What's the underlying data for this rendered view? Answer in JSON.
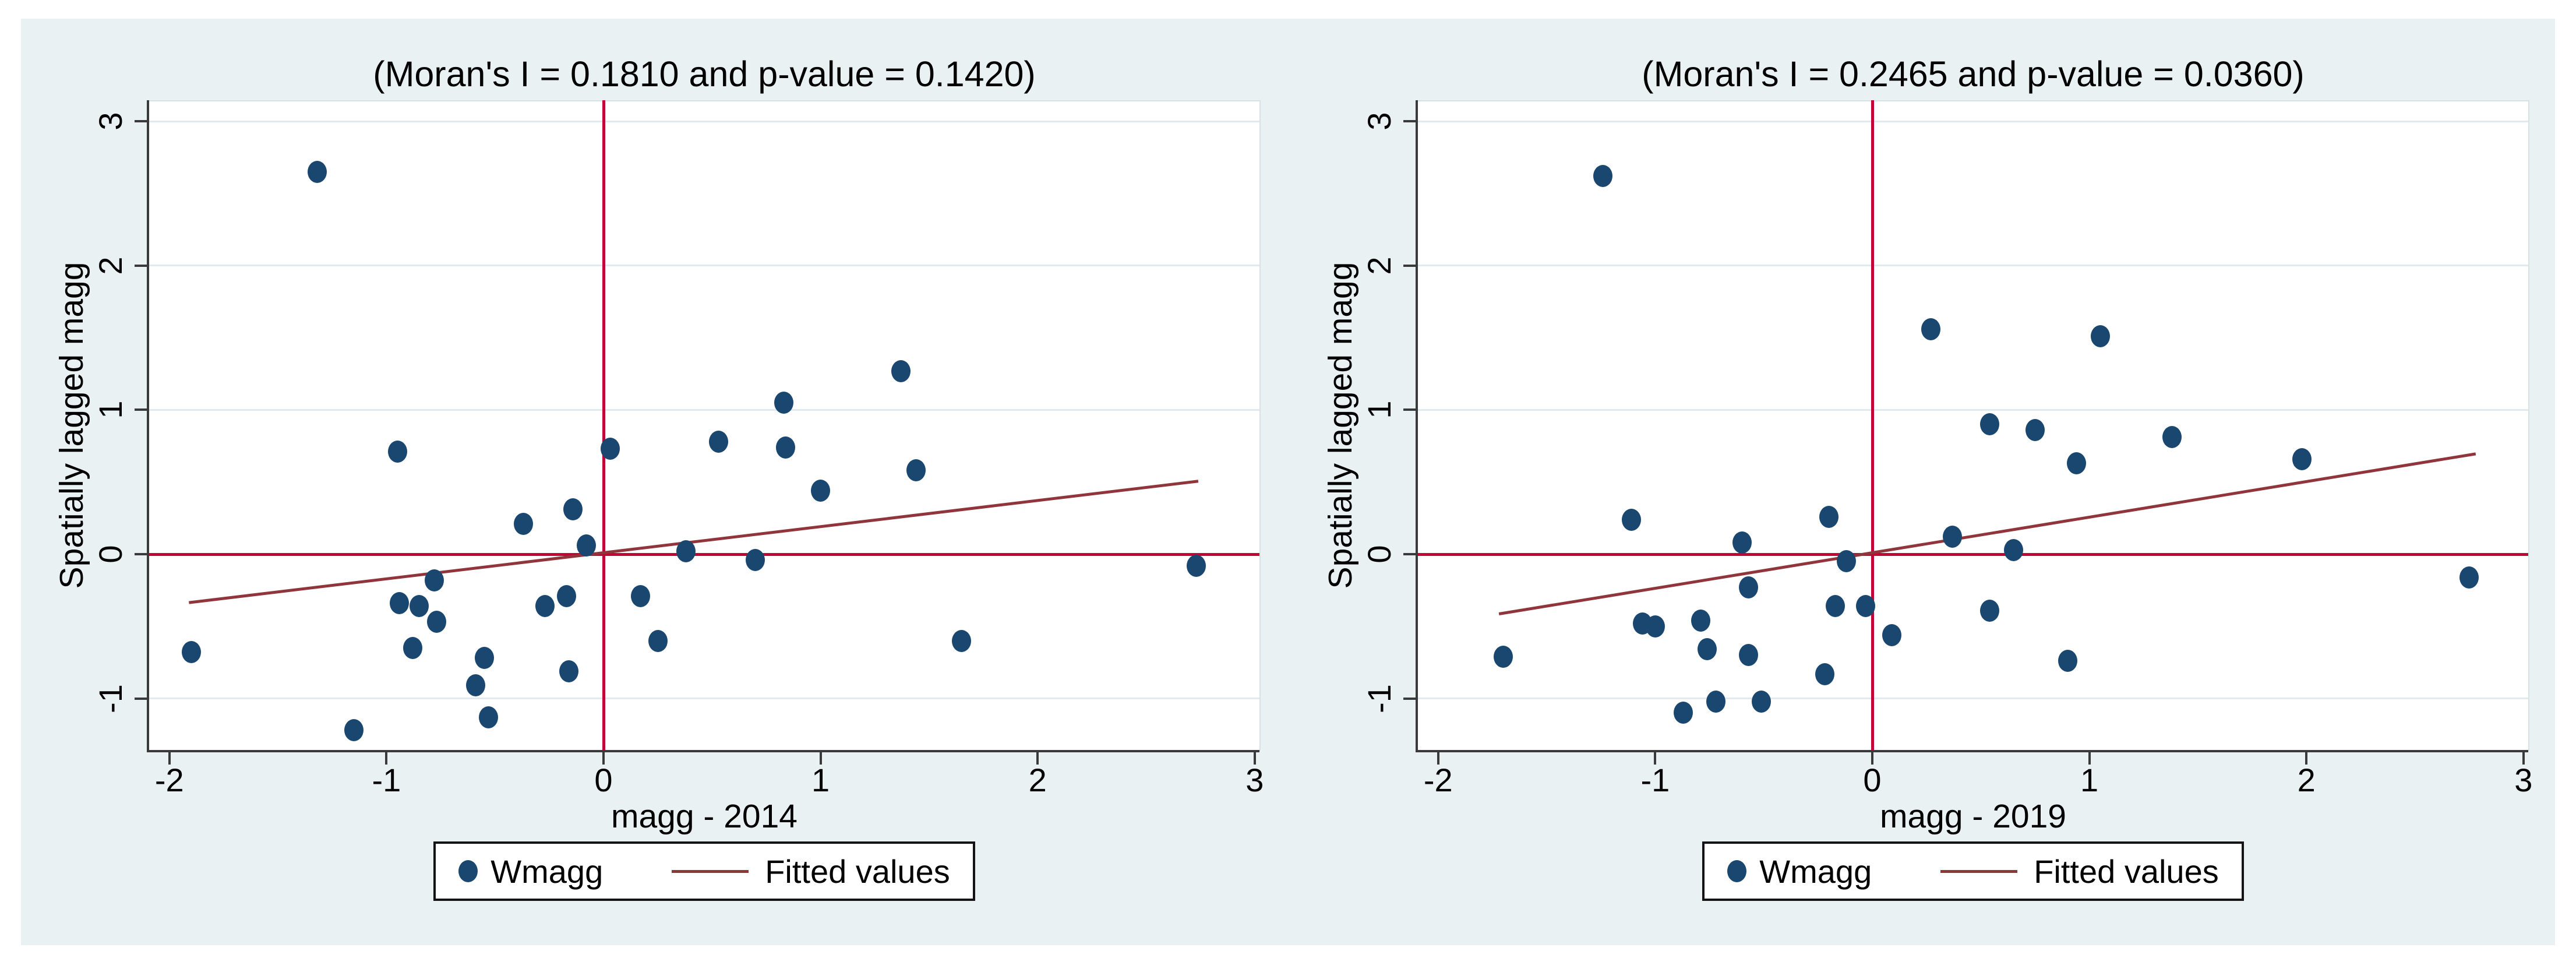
{
  "palette": {
    "canvas": "#eaf1f3",
    "plot_background": "#ffffff",
    "gridline": "#dfebee",
    "axis_line": "#3a3a3a",
    "marker": "#1a476f",
    "reference_line": "#c10534",
    "fitted_line": "#90353b",
    "text": "#000000",
    "legend_border": "#141414"
  },
  "y_axis_label": "Spatially lagged magg",
  "chart_data": [
    {
      "type": "scatter",
      "title": "(Moran's I = 0.1810 and p-value = 0.1420)",
      "moran_i": 0.181,
      "p_value": 0.142,
      "xlabel": "magg - 2014",
      "ylabel": "Spatially lagged magg",
      "xlim": [
        -2.09,
        3.02
      ],
      "ylim": [
        -1.36,
        3.15
      ],
      "xticks": [
        -2,
        -1,
        0,
        1,
        2,
        3
      ],
      "yticks": [
        3,
        2,
        1,
        0,
        -1
      ],
      "xtick_labels": [
        "-2",
        "-1",
        "0",
        "1",
        "2",
        "3"
      ],
      "ytick_labels": [
        "3",
        "2",
        "1",
        "0",
        "-1"
      ],
      "grid": "horizontal-only",
      "ref_lines": {
        "x": 0,
        "y": 0
      },
      "fit_line": {
        "slope": 0.181,
        "intercept": 0.01,
        "x_start": -1.91,
        "x_end": 2.74
      },
      "legend": [
        "Wmagg",
        "Fitted values"
      ],
      "legend_position": "bottom-center",
      "series": [
        {
          "name": "Wmagg",
          "points": [
            [
              -1.9,
              -0.68
            ],
            [
              -1.32,
              2.65
            ],
            [
              -1.15,
              -1.22
            ],
            [
              -0.95,
              0.71
            ],
            [
              -0.94,
              -0.34
            ],
            [
              -0.88,
              -0.65
            ],
            [
              -0.85,
              -0.36
            ],
            [
              -0.78,
              -0.18
            ],
            [
              -0.77,
              -0.47
            ],
            [
              -0.59,
              -0.91
            ],
            [
              -0.55,
              -0.72
            ],
            [
              -0.53,
              -1.13
            ],
            [
              -0.37,
              0.21
            ],
            [
              -0.27,
              -0.36
            ],
            [
              -0.17,
              -0.29
            ],
            [
              -0.16,
              -0.81
            ],
            [
              -0.14,
              0.31
            ],
            [
              -0.08,
              0.06
            ],
            [
              0.03,
              0.73
            ],
            [
              0.17,
              -0.29
            ],
            [
              0.25,
              -0.6
            ],
            [
              0.38,
              0.02
            ],
            [
              0.53,
              0.78
            ],
            [
              0.7,
              -0.04
            ],
            [
              0.83,
              1.05
            ],
            [
              0.84,
              0.74
            ],
            [
              1.0,
              0.44
            ],
            [
              1.37,
              1.27
            ],
            [
              1.44,
              0.58
            ],
            [
              1.65,
              -0.6
            ],
            [
              2.73,
              -0.08
            ]
          ]
        }
      ]
    },
    {
      "type": "scatter",
      "title": "(Moran's I = 0.2465 and p-value = 0.0360)",
      "moran_i": 0.2465,
      "p_value": 0.036,
      "xlabel": "magg - 2019",
      "ylabel": "Spatially lagged magg",
      "xlim": [
        -2.09,
        3.02
      ],
      "ylim": [
        -1.36,
        3.15
      ],
      "xticks": [
        -2,
        -1,
        0,
        1,
        2,
        3
      ],
      "yticks": [
        3,
        2,
        1,
        0,
        -1
      ],
      "xtick_labels": [
        "-2",
        "-1",
        "0",
        "1",
        "2",
        "3"
      ],
      "ytick_labels": [
        "3",
        "2",
        "1",
        "0",
        "-1"
      ],
      "grid": "horizontal-only",
      "ref_lines": {
        "x": 0,
        "y": 0
      },
      "fit_line": {
        "slope": 0.2465,
        "intercept": 0.01,
        "x_start": -1.72,
        "x_end": 2.78
      },
      "legend": [
        "Wmagg",
        "Fitted values"
      ],
      "legend_position": "bottom-center",
      "series": [
        {
          "name": "Wmagg",
          "points": [
            [
              -1.7,
              -0.71
            ],
            [
              -1.24,
              2.62
            ],
            [
              -1.11,
              0.24
            ],
            [
              -1.06,
              -0.48
            ],
            [
              -1.0,
              -0.5
            ],
            [
              -0.87,
              -1.1
            ],
            [
              -0.79,
              -0.46
            ],
            [
              -0.76,
              -0.66
            ],
            [
              -0.72,
              -1.02
            ],
            [
              -0.6,
              0.08
            ],
            [
              -0.57,
              -0.23
            ],
            [
              -0.57,
              -0.7
            ],
            [
              -0.51,
              -1.02
            ],
            [
              -0.22,
              -0.83
            ],
            [
              -0.2,
              0.26
            ],
            [
              -0.17,
              -0.36
            ],
            [
              -0.12,
              -0.05
            ],
            [
              -0.03,
              -0.36
            ],
            [
              0.09,
              -0.56
            ],
            [
              0.27,
              1.56
            ],
            [
              0.37,
              0.12
            ],
            [
              0.54,
              0.9
            ],
            [
              0.54,
              -0.39
            ],
            [
              0.65,
              0.03
            ],
            [
              0.75,
              0.86
            ],
            [
              0.9,
              -0.74
            ],
            [
              0.94,
              0.63
            ],
            [
              1.05,
              1.51
            ],
            [
              1.38,
              0.81
            ],
            [
              1.98,
              0.66
            ],
            [
              2.75,
              -0.16
            ]
          ]
        }
      ]
    }
  ]
}
